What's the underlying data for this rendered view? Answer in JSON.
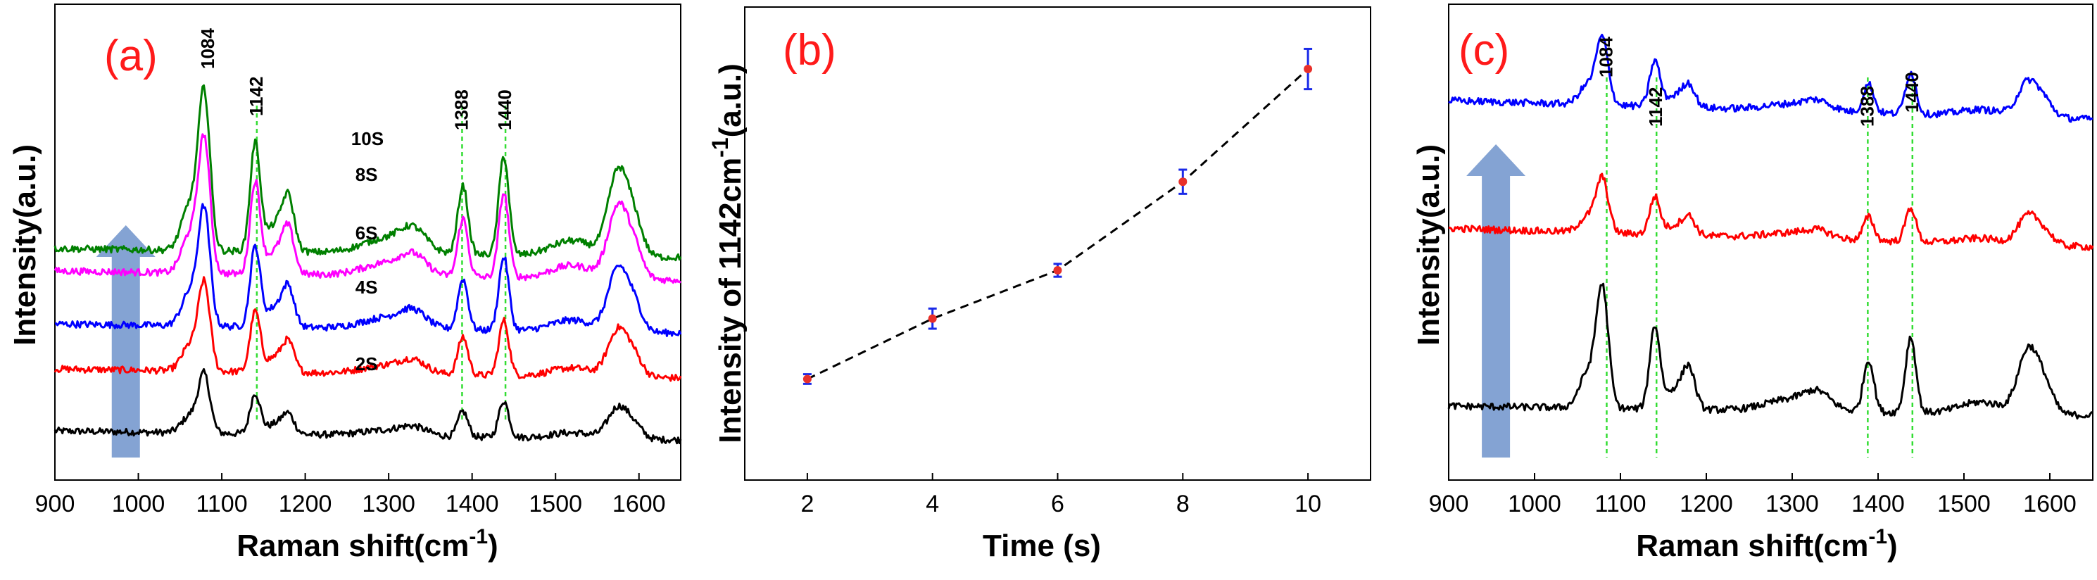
{
  "colors": {
    "black": "#000000",
    "red": "#ff0000",
    "blue": "#0000ff",
    "magenta": "#ff00ff",
    "green": "#008000",
    "guide": "#33dd33",
    "arrow": "#5b84c4",
    "point": "#e8302a",
    "errbar": "#1a2ae8",
    "panel_label": "#ff1a1a"
  },
  "chart_data": [
    {
      "type": "line",
      "panel_label": "(a)",
      "xlabel_main": "Raman shift(cm",
      "xlabel_sup": "-1",
      "xlabel_close": ")",
      "ylabel": "Intensity(a.u.)",
      "xlim": [
        900,
        1650
      ],
      "xticks": [
        "900",
        "1000",
        "1100",
        "1200",
        "1300",
        "1400",
        "1500",
        "1600"
      ],
      "peaks": [
        "1084",
        "1142",
        "1388",
        "1440"
      ],
      "peak_positions": [
        1084,
        1142,
        1388,
        1440
      ],
      "guides": [
        1142,
        1388,
        1440
      ],
      "arrow_x": 985,
      "series": [
        {
          "name": "2S",
          "color": "black",
          "offset": 0.0,
          "scale": 0.5
        },
        {
          "name": "4S",
          "color": "red",
          "offset": 0.55,
          "scale": 0.75
        },
        {
          "name": "6S",
          "color": "blue",
          "offset": 0.95,
          "scale": 1.0
        },
        {
          "name": "8S",
          "color": "magenta",
          "offset": 1.42,
          "scale": 1.15
        },
        {
          "name": "10S",
          "color": "green",
          "offset": 1.62,
          "scale": 1.35
        }
      ],
      "series_labels": [
        {
          "text": "2S",
          "x": 1260,
          "level": 0.62
        },
        {
          "text": "4S",
          "x": 1260,
          "level": 1.3
        },
        {
          "text": "6S",
          "x": 1260,
          "level": 1.78
        },
        {
          "text": "8S",
          "x": 1260,
          "level": 2.3
        },
        {
          "text": "10S",
          "x": 1255,
          "level": 2.62
        }
      ]
    },
    {
      "type": "scatter",
      "panel_label": "(b)",
      "xlabel": "Time (s)",
      "ylabel_main": "Intensity of 1142cm",
      "ylabel_sup": "-1",
      "ylabel_close": "(a.u.)",
      "xlim": [
        1,
        11
      ],
      "ylim": [
        0,
        100
      ],
      "xticks": [
        "2",
        "4",
        "6",
        "8",
        "10"
      ],
      "x": [
        2,
        4,
        6,
        8,
        10
      ],
      "y": [
        16,
        31,
        43,
        65,
        93
      ],
      "err": [
        1.2,
        2.5,
        1.6,
        3.0,
        5.0
      ],
      "style": "dashed"
    },
    {
      "type": "line",
      "panel_label": "(c)",
      "xlabel_main": "Raman shift(cm",
      "xlabel_sup": "-1",
      "xlabel_close": ")",
      "ylabel": "Intensity(a.u.)",
      "xlim": [
        900,
        1650
      ],
      "xticks": [
        "900",
        "1000",
        "1100",
        "1200",
        "1300",
        "1400",
        "1500",
        "1600"
      ],
      "peaks": [
        "1084",
        "1142",
        "1388",
        "1440"
      ],
      "peak_positions": [
        1084,
        1142,
        1388,
        1440
      ],
      "guides": [
        1084,
        1142,
        1388,
        1440
      ],
      "arrow_x": 955,
      "series": [
        {
          "name": "black",
          "color": "black",
          "offset": 0.0,
          "scale": 1.0
        },
        {
          "name": "red",
          "color": "red",
          "offset": 1.45,
          "scale": 0.45
        },
        {
          "name": "blue",
          "color": "blue",
          "offset": 2.55,
          "scale": 0.55
        }
      ]
    }
  ]
}
